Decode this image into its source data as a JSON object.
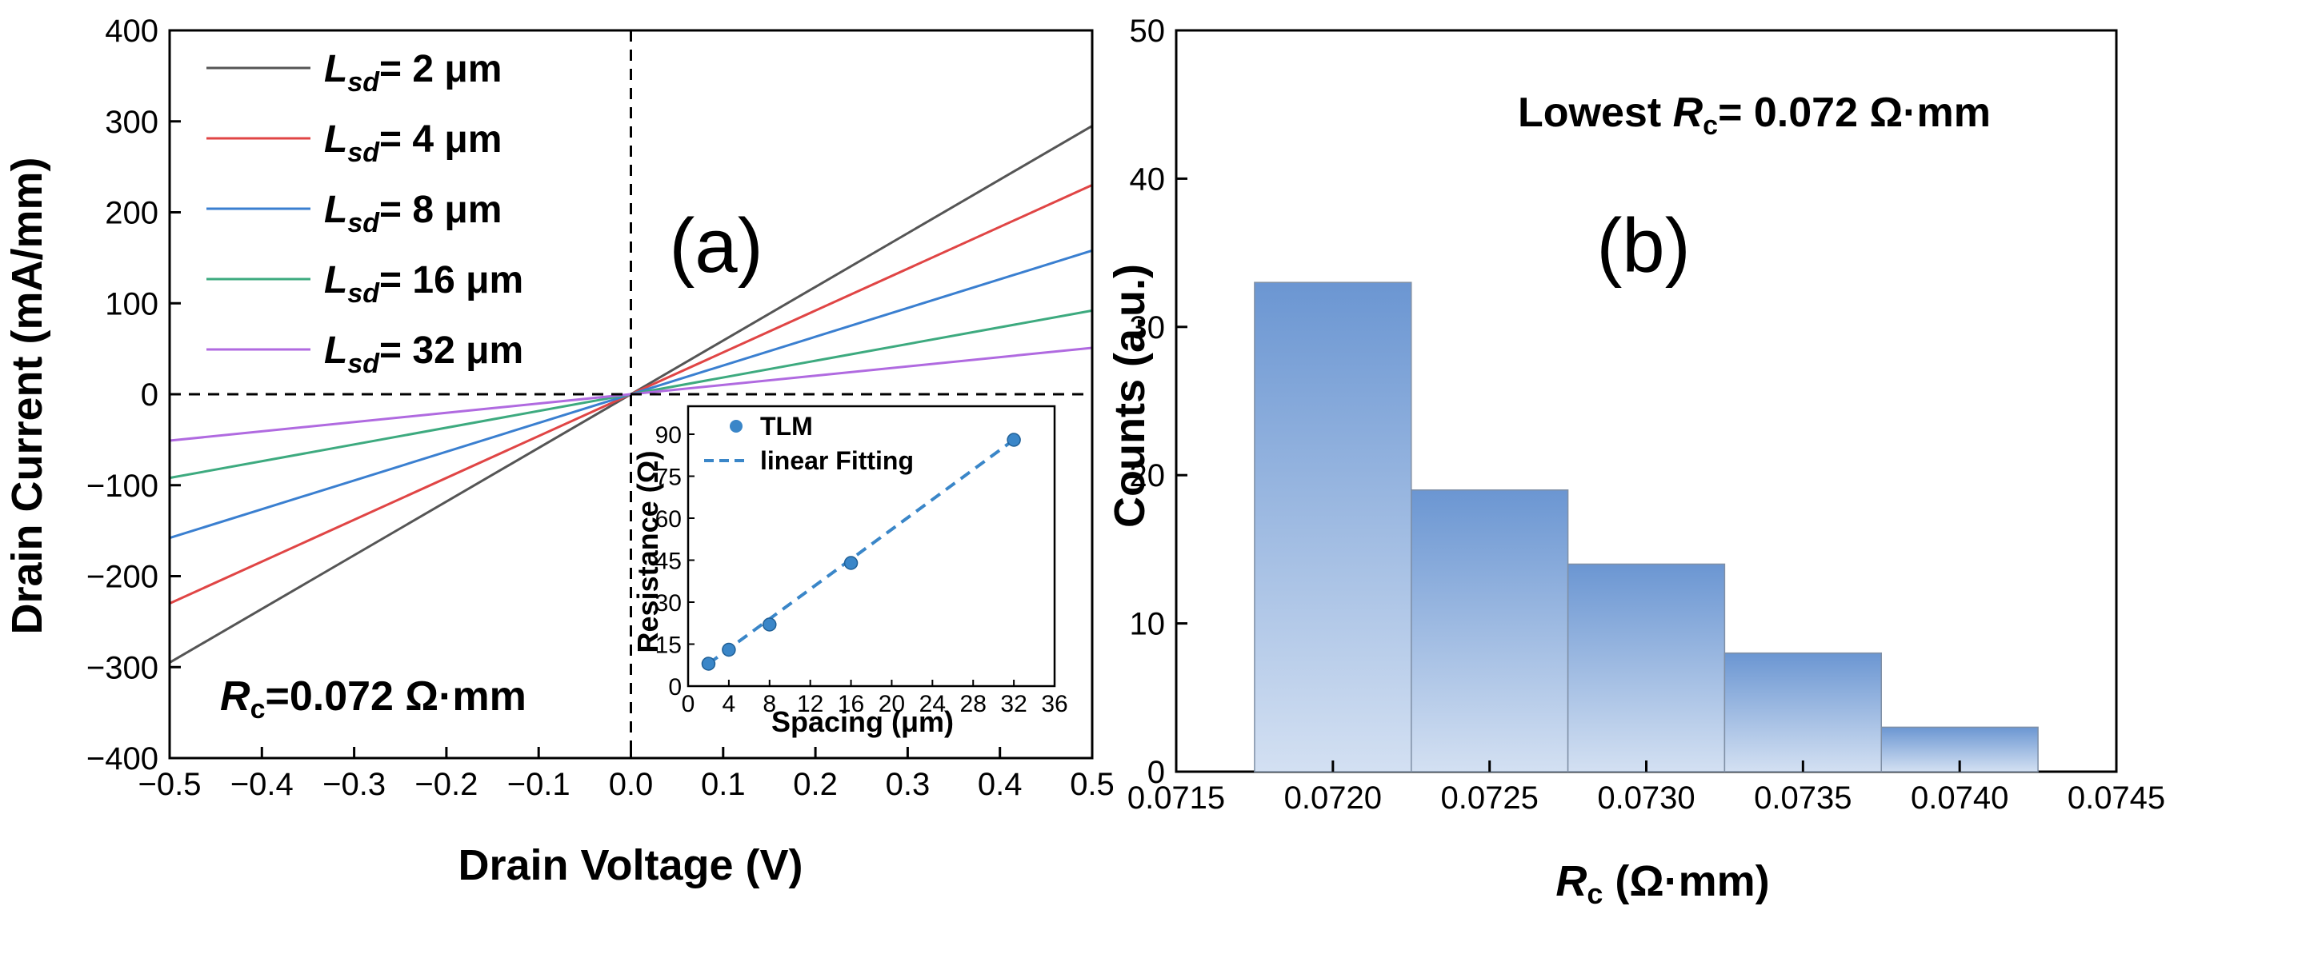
{
  "chart_data": [
    {
      "panel": "(a)",
      "type": "line",
      "xlabel": "Drain Voltage (V)",
      "ylabel": "Drain Current (mA/mm)",
      "xlim": [
        -0.5,
        0.5
      ],
      "ylim": [
        -400,
        400
      ],
      "xticks": [
        -0.5,
        -0.4,
        -0.3,
        -0.2,
        -0.1,
        0.0,
        0.1,
        0.2,
        0.3,
        0.4,
        0.5
      ],
      "xtick_labels": [
        "−0.5",
        "−0.4",
        "−0.3",
        "−0.2",
        "−0.1",
        "0.0",
        "0.1",
        "0.2",
        "0.3",
        "0.4",
        "0.5"
      ],
      "yticks": [
        -400,
        -300,
        -200,
        -100,
        0,
        100,
        200,
        300,
        400
      ],
      "ytick_labels": [
        "−400",
        "−300",
        "−200",
        "−100",
        "0",
        "100",
        "200",
        "300",
        "400"
      ],
      "series": [
        {
          "name": "L",
          "sub": "sd",
          "suffix": "= 2 μm",
          "color": "#555555",
          "x": [
            -0.5,
            0.5
          ],
          "y": [
            -295,
            295
          ]
        },
        {
          "name": "L",
          "sub": "sd",
          "suffix": "= 4 μm",
          "color": "#e04545",
          "x": [
            -0.5,
            0.5
          ],
          "y": [
            -230,
            230
          ]
        },
        {
          "name": "L",
          "sub": "sd",
          "suffix": "= 8 μm",
          "color": "#3a7fd0",
          "x": [
            -0.5,
            0.5
          ],
          "y": [
            -158,
            158
          ]
        },
        {
          "name": "L",
          "sub": "sd",
          "suffix": "= 16 μm",
          "color": "#3daa7f",
          "x": [
            -0.5,
            0.5
          ],
          "y": [
            -92,
            92
          ]
        },
        {
          "name": "L",
          "sub": "sd",
          "suffix": "= 32 μm",
          "color": "#b06ae0",
          "x": [
            -0.5,
            0.5
          ],
          "y": [
            -51,
            51
          ]
        }
      ],
      "annotation": {
        "symbol": "R",
        "sub": "c",
        "text": "=0.072 Ω·mm"
      },
      "reference_lines": {
        "x": 0,
        "y": 0,
        "style": "dashed"
      },
      "inset": {
        "type": "scatter",
        "xlabel": "Spacing (μm)",
        "ylabel": "Resistance (Ω)",
        "xlim": [
          0,
          36
        ],
        "ylim": [
          0,
          100
        ],
        "xticks": [
          0,
          4,
          8,
          12,
          16,
          20,
          24,
          28,
          32,
          36
        ],
        "yticks": [
          0,
          15,
          30,
          45,
          60,
          75,
          90
        ],
        "points": {
          "name": "TLM",
          "x": [
            2,
            4,
            8,
            16,
            32
          ],
          "y": [
            8,
            13,
            22,
            44,
            88
          ],
          "color": "#3a86c8"
        },
        "fit": {
          "name": "linear Fitting",
          "x": [
            2,
            32
          ],
          "y": [
            8,
            88
          ],
          "color": "#3a86c8"
        }
      }
    },
    {
      "panel": "(b)",
      "type": "bar",
      "subtype": "histogram",
      "xlabel_symbol": "R",
      "xlabel_sub": "c",
      "xlabel_rest": " (Ω·mm)",
      "ylabel": "Counts (a.u.)",
      "xlim": [
        0.0715,
        0.0745
      ],
      "ylim": [
        0,
        50
      ],
      "xticks": [
        0.0715,
        0.072,
        0.0725,
        0.073,
        0.0735,
        0.074,
        0.0745
      ],
      "xtick_labels": [
        "0.0715",
        "0.0720",
        "0.0725",
        "0.0730",
        "0.0735",
        "0.0740",
        "0.0745"
      ],
      "yticks": [
        0,
        10,
        20,
        30,
        40,
        50
      ],
      "ytick_labels": [
        "0",
        "10",
        "20",
        "30",
        "40",
        "50"
      ],
      "bin_width": 0.0005,
      "categories": [
        "0.0720",
        "0.0725",
        "0.0730",
        "0.0735",
        "0.0740"
      ],
      "bin_centers": [
        0.072,
        0.0725,
        0.073,
        0.0735,
        0.074
      ],
      "values": [
        33,
        19,
        14,
        8,
        3
      ],
      "bar_color_top": "#6b96d2",
      "bar_color_bottom": "#d3e0f2",
      "annotation": {
        "prefix": "Lowest ",
        "symbol": "R",
        "sub": "c",
        "text": "= 0.072 Ω·mm"
      }
    }
  ]
}
